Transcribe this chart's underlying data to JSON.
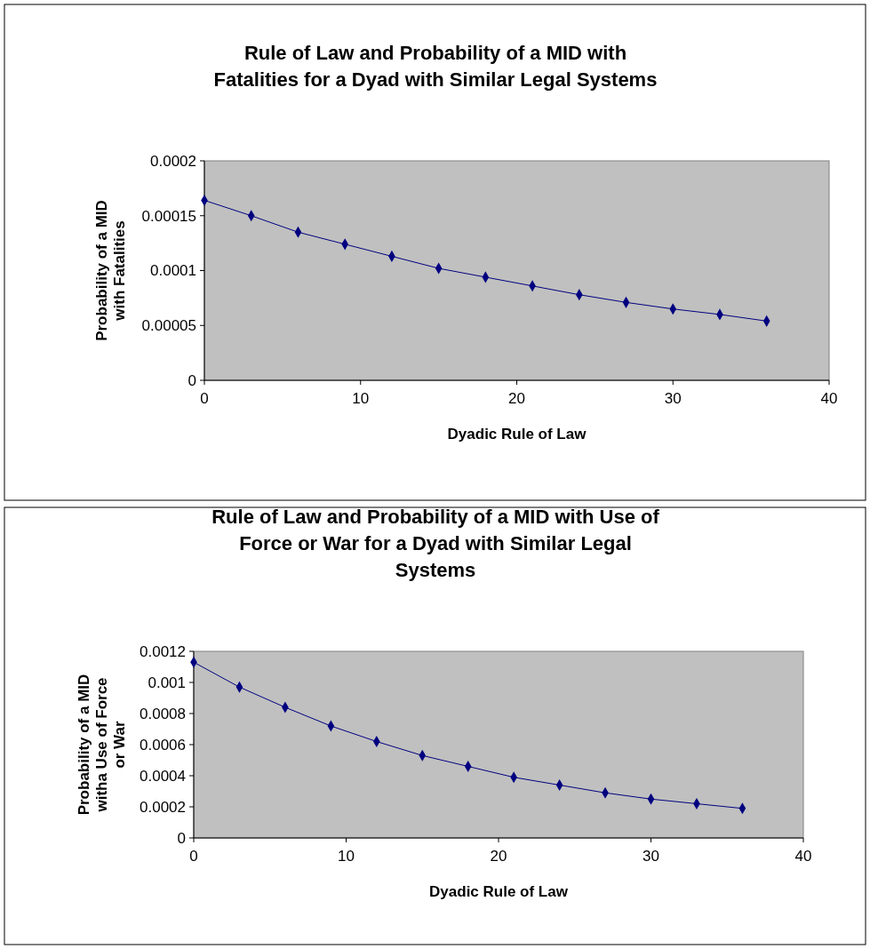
{
  "chart_data": [
    {
      "type": "line",
      "title": "Rule of Law and Probability of a MID with\nFatalities for a Dyad with Similar Legal Systems",
      "xlabel": "Dyadic Rule of Law",
      "ylabel": "Probability of a MID\nwith Fatalities",
      "x": [
        0,
        3,
        6,
        9,
        12,
        15,
        18,
        21,
        24,
        27,
        30,
        33,
        36
      ],
      "series": [
        {
          "color": "#000080",
          "values": [
            0.000164,
            0.00015,
            0.000135,
            0.000124,
            0.000113,
            0.000102,
            9.4e-05,
            8.6e-05,
            7.8e-05,
            7.1e-05,
            6.5e-05,
            6e-05,
            5.4e-05
          ]
        }
      ],
      "xlim": [
        0,
        40
      ],
      "xticks": [
        0,
        10,
        20,
        30,
        40
      ],
      "ylim": [
        0,
        0.0002
      ],
      "yticks": [
        0,
        {
          "value": 5e-05,
          "label": "0.00005"
        },
        0.0001,
        0.00015,
        0.0002
      ],
      "grid": false,
      "marker": "diamond",
      "line_style": "solid"
    },
    {
      "type": "line",
      "title": "Rule of Law and Probability of a MID with Use of\nForce or War for a Dyad with Similar Legal\nSystems",
      "xlabel": "Dyadic Rule of Law",
      "ylabel": "Probability of a MID\nwitha Use of Force\nor War",
      "x": [
        0,
        3,
        6,
        9,
        12,
        15,
        18,
        21,
        24,
        27,
        30,
        33,
        36
      ],
      "series": [
        {
          "color": "#000080",
          "values": [
            0.00113,
            0.00097,
            0.00084,
            0.00072,
            0.00062,
            0.00053,
            0.00046,
            0.00039,
            0.00034,
            0.00029,
            0.00025,
            0.00022,
            0.00019
          ]
        }
      ],
      "xlim": [
        0,
        40
      ],
      "xticks": [
        0,
        10,
        20,
        30,
        40
      ],
      "ylim": [
        0,
        0.0012
      ],
      "yticks": [
        0,
        0.0002,
        0.0004,
        0.0006,
        0.0008,
        0.001,
        0.0012
      ],
      "grid": false,
      "marker": "diamond",
      "line_style": "solid"
    }
  ]
}
